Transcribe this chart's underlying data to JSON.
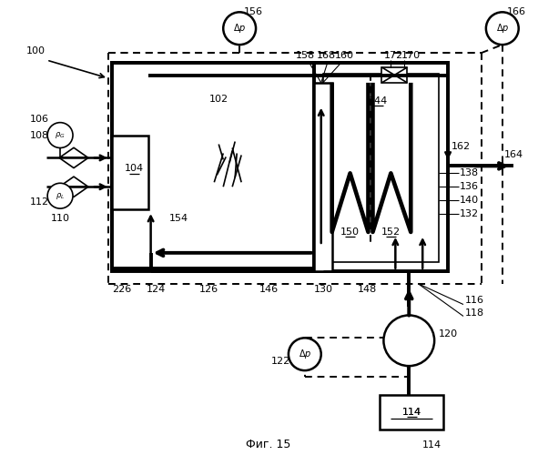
{
  "title": "Фиг. 15",
  "bg_color": "#ffffff",
  "fig_w": 5.91,
  "fig_h": 5.0,
  "dpi": 100
}
